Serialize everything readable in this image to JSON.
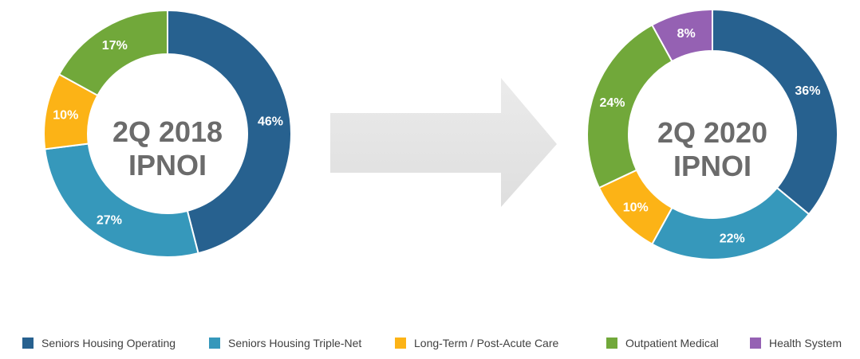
{
  "chart_data": [
    {
      "type": "pie",
      "variant": "donut",
      "center_label": [
        "2Q 2018",
        "IPNOI"
      ],
      "slices": [
        {
          "name": "Seniors Housing Operating",
          "value": 46,
          "label": "46%"
        },
        {
          "name": "Seniors Housing Triple-Net",
          "value": 27,
          "label": "27%"
        },
        {
          "name": "Long-Term / Post-Acute Care",
          "value": 10,
          "label": "10%"
        },
        {
          "name": "Outpatient Medical",
          "value": 17,
          "label": "17%"
        }
      ]
    },
    {
      "type": "pie",
      "variant": "donut",
      "center_label": [
        "2Q 2020",
        "IPNOI"
      ],
      "slices": [
        {
          "name": "Seniors Housing Operating",
          "value": 36,
          "label": "36%"
        },
        {
          "name": "Seniors Housing Triple-Net",
          "value": 22,
          "label": "22%"
        },
        {
          "name": "Long-Term / Post-Acute Care",
          "value": 10,
          "label": "10%"
        },
        {
          "name": "Outpatient Medical",
          "value": 24,
          "label": "24%"
        },
        {
          "name": "Health System",
          "value": 8,
          "label": "8%"
        }
      ]
    }
  ],
  "legend": {
    "placement": "bottom",
    "items": [
      {
        "label": "Seniors Housing Operating",
        "color": "#27618f"
      },
      {
        "label": "Seniors Housing Triple-Net",
        "color": "#3698bb"
      },
      {
        "label": "Long-Term / Post-Acute Care",
        "color": "#fcb316"
      },
      {
        "label": "Outpatient Medical",
        "color": "#71a83a"
      },
      {
        "label": "Health System",
        "color": "#9561b3"
      }
    ]
  },
  "colors": {
    "Seniors Housing Operating": "#27618f",
    "Seniors Housing Triple-Net": "#3698bb",
    "Long-Term / Post-Acute Care": "#fcb316",
    "Outpatient Medical": "#71a83a",
    "Health System": "#9561b3",
    "arrow": "#e7e7e7",
    "center_text": "#6b6b6b"
  }
}
